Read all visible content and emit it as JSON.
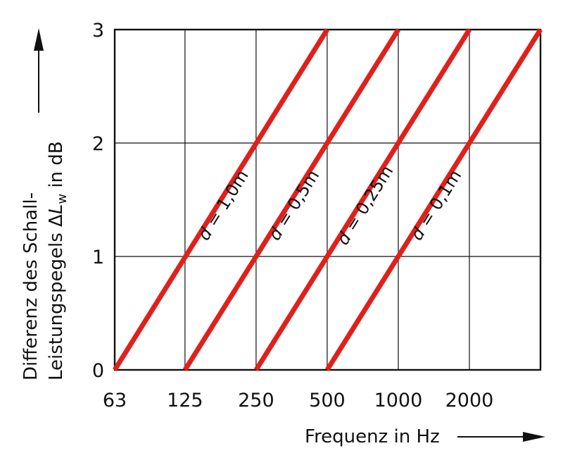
{
  "chart_data": {
    "type": "line",
    "x_scale": "log2",
    "x_ticks": [
      "63",
      "125",
      "250",
      "500",
      "1000",
      "2000"
    ],
    "x_tick_values": [
      63,
      125,
      250,
      500,
      1000,
      2000
    ],
    "xlim": [
      63,
      4000
    ],
    "y_ticks": [
      "0",
      "1",
      "2",
      "3"
    ],
    "ylim": [
      0,
      3
    ],
    "xlabel": "Frequenz in Hz",
    "ylabel_line1": "Differenz des Schall-",
    "ylabel_line2_prefix": "Leistungspegels ",
    "ylabel_delta": "Δ",
    "ylabel_symbol": "L",
    "ylabel_subscript": "w",
    "ylabel_suffix": " in  dB",
    "grid": true,
    "series": [
      {
        "name": "d = 1,0m",
        "x": [
          63,
          500
        ],
        "y": [
          0,
          3
        ]
      },
      {
        "name": "d = 0,5m",
        "x": [
          125,
          1000
        ],
        "y": [
          0,
          3
        ]
      },
      {
        "name": "d = 0,25m",
        "x": [
          250,
          2000
        ],
        "y": [
          0,
          3
        ]
      },
      {
        "name": "d = 0,1m",
        "x": [
          500,
          4000
        ],
        "y": [
          0,
          3
        ]
      }
    ],
    "line_color": "#e0201a",
    "grid_color": "#111111"
  }
}
